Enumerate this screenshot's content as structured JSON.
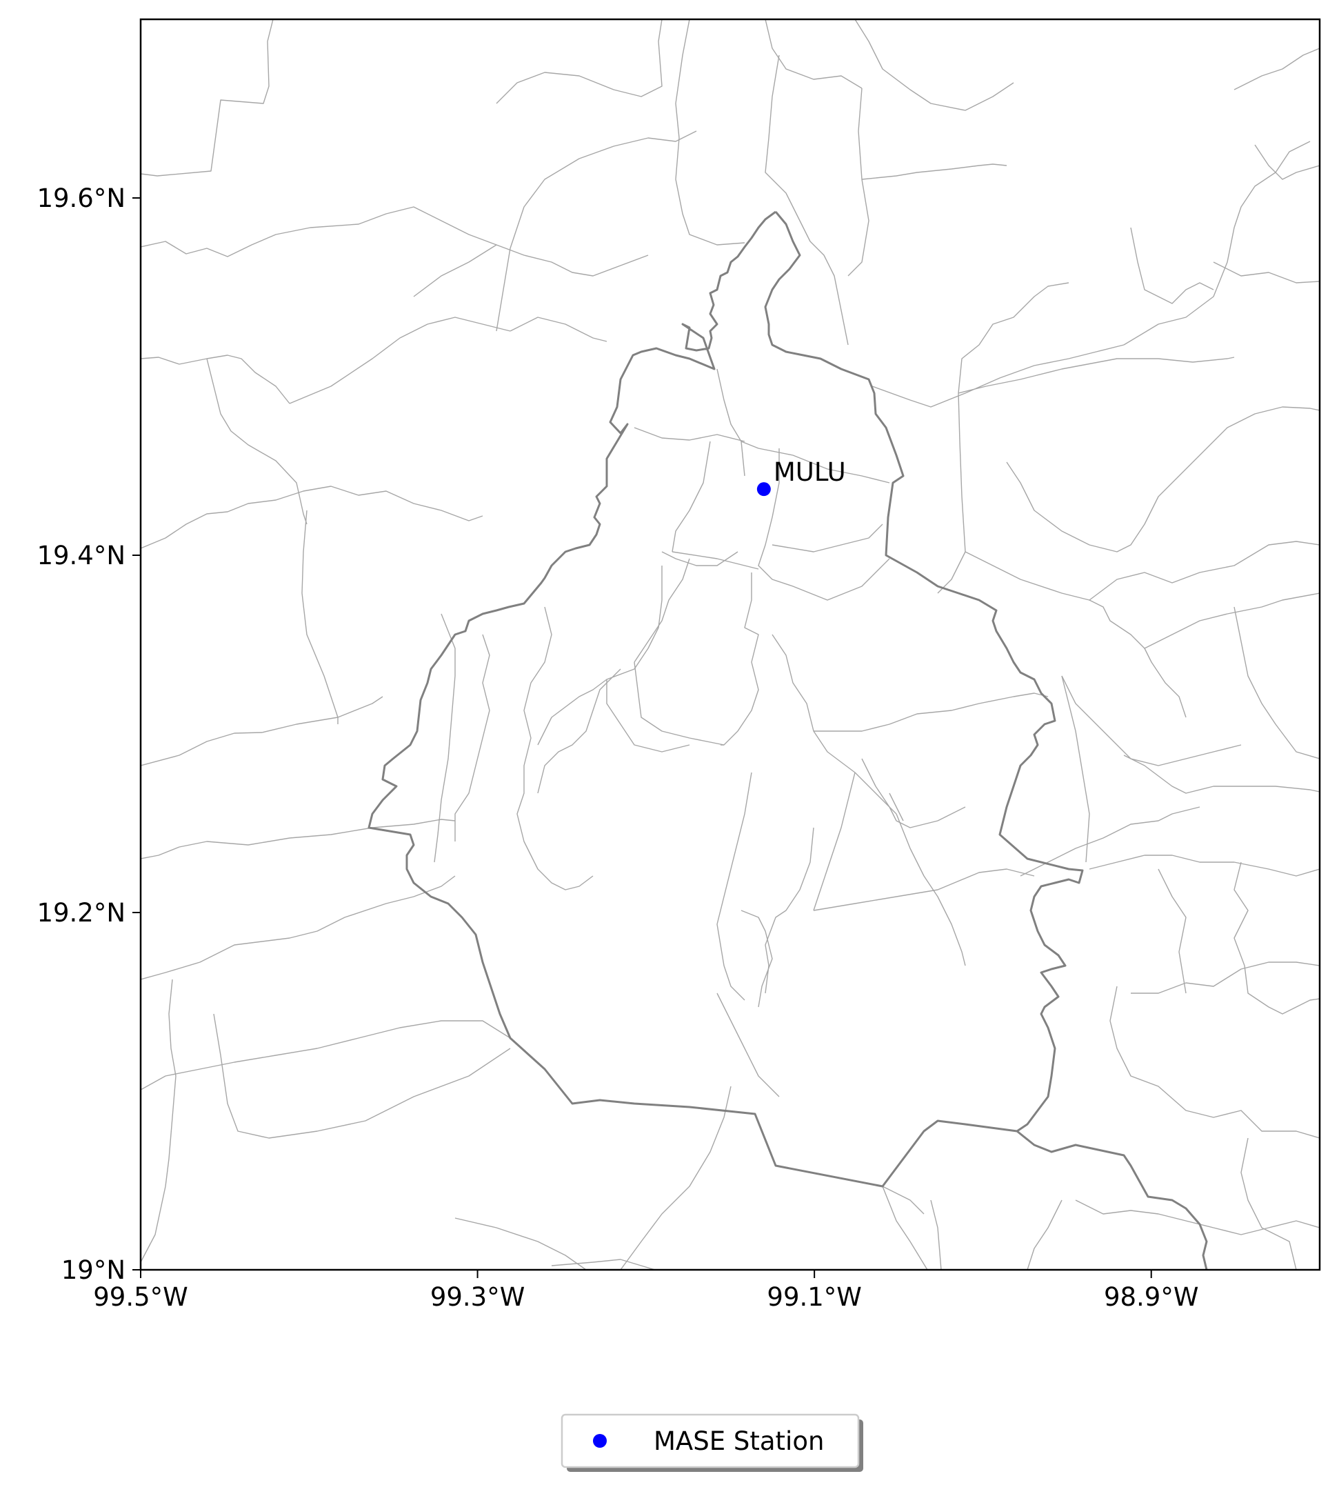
{
  "map": {
    "extent": {
      "lon": [
        -99.5,
        -98.8
      ],
      "lat": [
        19.0,
        19.7
      ]
    },
    "x_ticks": [
      {
        "value": -99.5,
        "label": "99.5°W"
      },
      {
        "value": -99.3,
        "label": "99.3°W"
      },
      {
        "value": -99.1,
        "label": "99.1°W"
      },
      {
        "value": -98.9,
        "label": "98.9°W"
      }
    ],
    "y_ticks": [
      {
        "value": 19.0,
        "label": "19°N"
      },
      {
        "value": 19.2,
        "label": "19.2°N"
      },
      {
        "value": 19.4,
        "label": "19.4°N"
      },
      {
        "value": 19.6,
        "label": "19.6°N"
      }
    ],
    "stations": [
      {
        "name": "MULU",
        "lon": -99.13,
        "lat": 19.437
      }
    ],
    "colors": {
      "station": "#0000ff",
      "municipal_borders": "#a6a6a6",
      "state_border": "#808080",
      "frame": "#000000"
    }
  },
  "legend": {
    "placement": "lower-center",
    "entries": [
      {
        "label": "MASE Station",
        "marker": "circle",
        "color": "#0000ff"
      }
    ]
  }
}
